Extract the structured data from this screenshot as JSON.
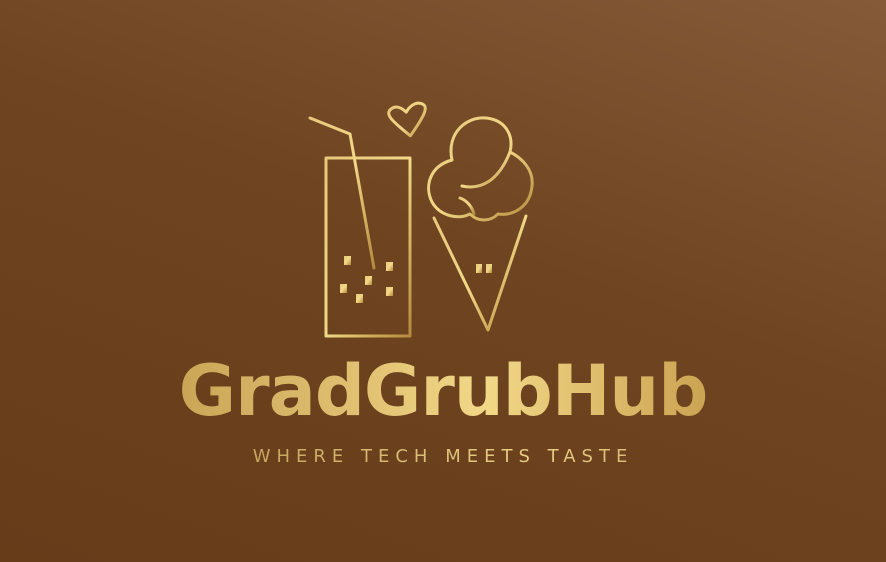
{
  "logo": {
    "brand_name": "GradGrubHub",
    "tagline": "WHERE TECH MEETS TASTE",
    "icons": [
      "drink-glass-icon",
      "straw-icon",
      "heart-icon",
      "ice-cream-cone-icon"
    ]
  },
  "colors": {
    "background_light": "#845a38",
    "background_dark": "#663c19",
    "gold_light": "#f1d887",
    "gold_mid": "#d8b368",
    "gold_dark": "#a87a2e"
  }
}
